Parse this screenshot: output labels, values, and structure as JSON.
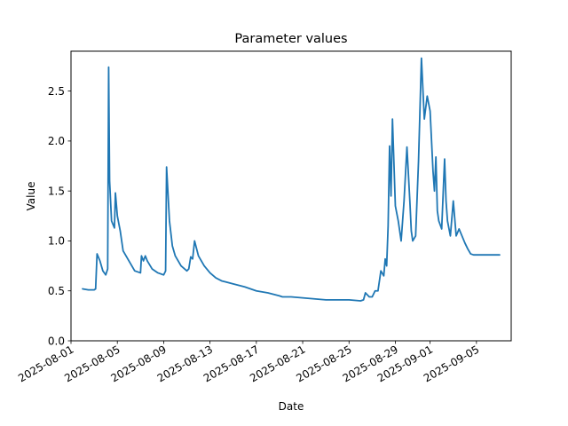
{
  "chart_data": {
    "type": "line",
    "title": "Parameter values",
    "xlabel": "Date",
    "ylabel": "Value",
    "xlim": [
      "2025-08-01",
      "2025-09-08"
    ],
    "ylim": [
      0,
      2.9
    ],
    "grid": false,
    "legend": "none",
    "x_ticks": [
      "2025-08-01",
      "2025-08-05",
      "2025-08-09",
      "2025-08-13",
      "2025-08-17",
      "2025-08-21",
      "2025-08-25",
      "2025-08-29",
      "2025-09-01",
      "2025-09-05"
    ],
    "y_ticks": [
      0.0,
      0.5,
      1.0,
      1.5,
      2.0,
      2.5
    ],
    "series": [
      {
        "color": "#1f77b4",
        "x": [
          "2025-08-02T00:00",
          "2025-08-02T12:00",
          "2025-08-03T00:00",
          "2025-08-03T03:00",
          "2025-08-03T06:00",
          "2025-08-03T12:00",
          "2025-08-03T18:00",
          "2025-08-04T00:00",
          "2025-08-04T04:00",
          "2025-08-04T06:00",
          "2025-08-04T08:00",
          "2025-08-04T12:00",
          "2025-08-04T18:00",
          "2025-08-04T20:00",
          "2025-08-05T00:00",
          "2025-08-05T06:00",
          "2025-08-05T12:00",
          "2025-08-06T00:00",
          "2025-08-06T12:00",
          "2025-08-07T00:00",
          "2025-08-07T02:00",
          "2025-08-07T06:00",
          "2025-08-07T10:00",
          "2025-08-07T14:00",
          "2025-08-08T00:00",
          "2025-08-08T12:00",
          "2025-08-09T00:00",
          "2025-08-09T04:00",
          "2025-08-09T06:00",
          "2025-08-09T12:00",
          "2025-08-09T18:00",
          "2025-08-10T00:00",
          "2025-08-10T12:00",
          "2025-08-11T00:00",
          "2025-08-11T04:00",
          "2025-08-11T08:00",
          "2025-08-11T12:00",
          "2025-08-11T16:00",
          "2025-08-12T00:00",
          "2025-08-12T12:00",
          "2025-08-13T00:00",
          "2025-08-13T12:00",
          "2025-08-14T00:00",
          "2025-08-15T00:00",
          "2025-08-16T00:00",
          "2025-08-17T00:00",
          "2025-08-18T00:00",
          "2025-08-19T00:00",
          "2025-08-19T06:00",
          "2025-08-20T00:00",
          "2025-08-21T00:00",
          "2025-08-22T00:00",
          "2025-08-23T00:00",
          "2025-08-24T00:00",
          "2025-08-25T00:00",
          "2025-08-26T00:00",
          "2025-08-26T06:00",
          "2025-08-26T10:00",
          "2025-08-26T18:00",
          "2025-08-27T00:00",
          "2025-08-27T06:00",
          "2025-08-27T12:00",
          "2025-08-27T18:00",
          "2025-08-28T00:00",
          "2025-08-28T03:00",
          "2025-08-28T06:00",
          "2025-08-28T09:00",
          "2025-08-28T12:00",
          "2025-08-28T15:00",
          "2025-08-28T18:00",
          "2025-08-29T00:00",
          "2025-08-29T06:00",
          "2025-08-29T12:00",
          "2025-08-29T18:00",
          "2025-08-30T00:00",
          "2025-08-30T06:00",
          "2025-08-30T09:00",
          "2025-08-30T12:00",
          "2025-08-30T18:00",
          "2025-08-31T00:00",
          "2025-08-31T06:00",
          "2025-08-31T12:00",
          "2025-08-31T18:00",
          "2025-09-01T00:00",
          "2025-09-01T06:00",
          "2025-09-01T09:00",
          "2025-09-01T12:00",
          "2025-09-01T15:00",
          "2025-09-01T18:00",
          "2025-09-02T00:00",
          "2025-09-02T06:00",
          "2025-09-02T09:00",
          "2025-09-02T12:00",
          "2025-09-02T18:00",
          "2025-09-03T00:00",
          "2025-09-03T06:00",
          "2025-09-03T12:00",
          "2025-09-03T18:00",
          "2025-09-04T00:00",
          "2025-09-04T06:00",
          "2025-09-04T12:00",
          "2025-09-04T18:00",
          "2025-09-05T00:00",
          "2025-09-05T06:00",
          "2025-09-05T12:00",
          "2025-09-05T18:00",
          "2025-09-06T00:00",
          "2025-09-06T12:00",
          "2025-09-07T00:00"
        ],
        "values": [
          0.52,
          0.51,
          0.51,
          0.52,
          0.87,
          0.8,
          0.7,
          0.66,
          0.72,
          2.74,
          1.6,
          1.2,
          1.13,
          1.48,
          1.25,
          1.1,
          0.9,
          0.8,
          0.7,
          0.68,
          0.85,
          0.8,
          0.85,
          0.8,
          0.72,
          0.68,
          0.66,
          0.7,
          1.74,
          1.2,
          0.95,
          0.85,
          0.75,
          0.7,
          0.72,
          0.84,
          0.82,
          1.0,
          0.85,
          0.75,
          0.68,
          0.63,
          0.6,
          0.57,
          0.54,
          0.5,
          0.48,
          0.45,
          0.44,
          0.44,
          0.43,
          0.42,
          0.41,
          0.41,
          0.41,
          0.4,
          0.41,
          0.48,
          0.44,
          0.44,
          0.5,
          0.5,
          0.7,
          0.65,
          0.82,
          0.75,
          1.15,
          1.95,
          1.45,
          2.22,
          1.35,
          1.2,
          1.0,
          1.4,
          1.94,
          1.4,
          1.1,
          1.0,
          1.05,
          1.8,
          2.83,
          2.22,
          2.45,
          2.3,
          1.7,
          1.5,
          1.84,
          1.3,
          1.2,
          1.12,
          1.82,
          1.4,
          1.2,
          1.05,
          1.4,
          1.05,
          1.12,
          1.05,
          0.98,
          0.92,
          0.87,
          0.86,
          0.86,
          0.86,
          0.86,
          0.86,
          0.86,
          0.86,
          0.86
        ]
      }
    ]
  }
}
